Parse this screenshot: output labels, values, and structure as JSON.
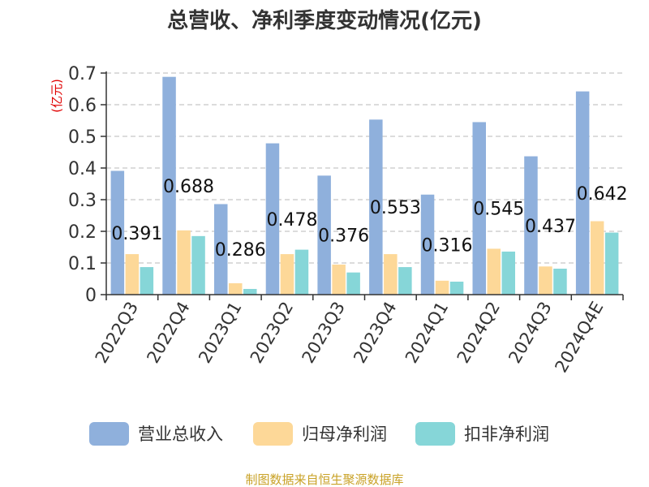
{
  "chart_data": {
    "type": "bar",
    "title": "总营收、净利季度变动情况(亿元)",
    "ylabel": "(亿元)",
    "ylim": [
      0,
      0.7
    ],
    "yticks": [
      "0",
      "0.1",
      "0.2",
      "0.3",
      "0.4",
      "0.5",
      "0.6",
      "0.7"
    ],
    "grid": true,
    "legend_position": "bottom",
    "categories": [
      "2022Q3",
      "2022Q4",
      "2023Q1",
      "2023Q2",
      "2023Q3",
      "2023Q4",
      "2024Q1",
      "2024Q2",
      "2024Q3",
      "2024Q4E"
    ],
    "series": [
      {
        "name": "营业总收入",
        "color": "#8fb0dc",
        "values": [
          0.391,
          0.688,
          0.286,
          0.478,
          0.376,
          0.553,
          0.316,
          0.545,
          0.437,
          0.642
        ],
        "data_labels": [
          "0.391",
          "0.688",
          "0.286",
          "0.478",
          "0.376",
          "0.553",
          "0.316",
          "0.545",
          "0.437",
          "0.642"
        ]
      },
      {
        "name": "归母净利润",
        "color": "#fdd898",
        "values": [
          0.128,
          0.203,
          0.036,
          0.128,
          0.095,
          0.128,
          0.044,
          0.145,
          0.089,
          0.232
        ]
      },
      {
        "name": "扣非净利润",
        "color": "#86d6d8",
        "values": [
          0.087,
          0.185,
          0.018,
          0.142,
          0.07,
          0.087,
          0.041,
          0.136,
          0.082,
          0.196
        ]
      }
    ]
  },
  "source": "制图数据来自恒生聚源数据库"
}
